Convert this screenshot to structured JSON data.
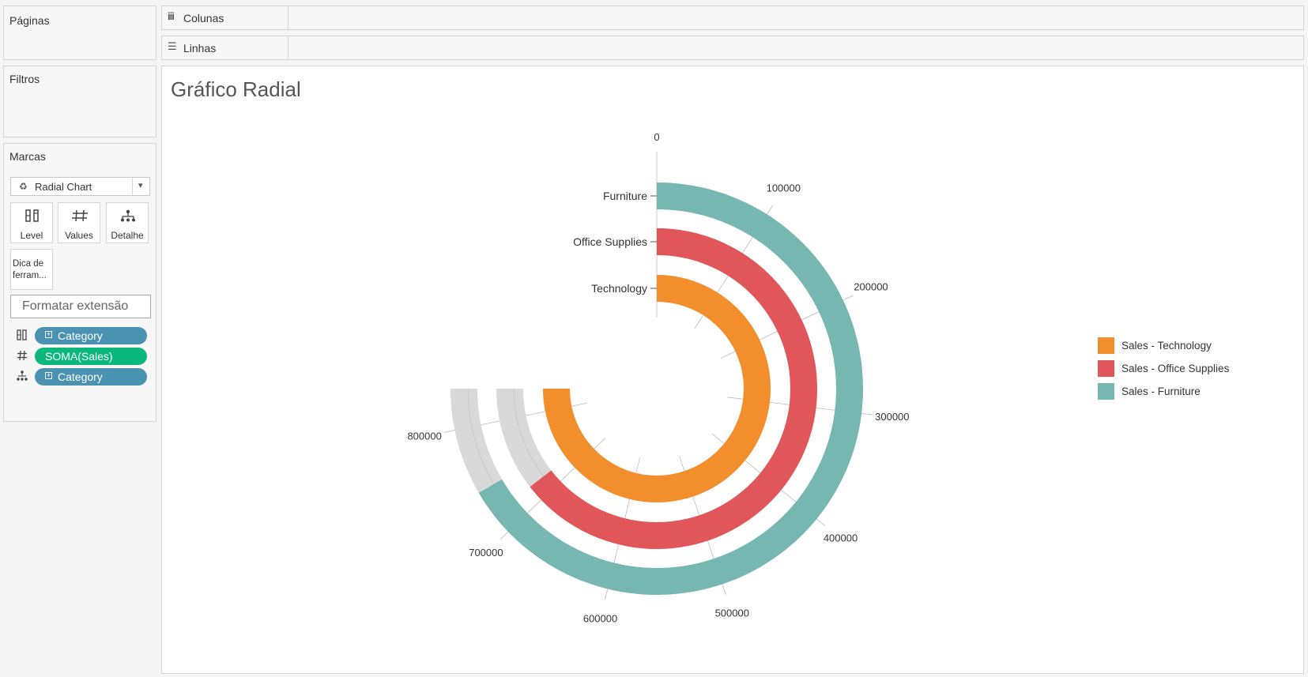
{
  "left_panel": {
    "paginas_title": "Páginas",
    "filtros_title": "Filtros",
    "marcas_title": "Marcas",
    "mark_type": "Radial Chart",
    "buttons": {
      "level": "Level",
      "values": "Values",
      "detalhe": "Detalhe",
      "tooltip": "Dica de ferram..."
    },
    "format_extension": "Formatar extensão",
    "pills": [
      {
        "label": "Category",
        "icon": "level-icon",
        "color": "#4a92b1"
      },
      {
        "label": "SOMA(Sales)",
        "icon": "hash-icon",
        "color": "#0bb77d"
      },
      {
        "label": "Category",
        "icon": "hierarchy-icon",
        "color": "#4a92b1"
      }
    ]
  },
  "shelves": {
    "colunas": "Colunas",
    "linhas": "Linhas"
  },
  "chart_data": {
    "type": "radial bar",
    "title": "Gráfico Radial",
    "axis_ticks": [
      0,
      100000,
      200000,
      300000,
      400000,
      500000,
      600000,
      700000,
      800000
    ],
    "axis_tick_labels": [
      "0",
      "100000",
      "200000",
      "300000",
      "400000",
      "500000",
      "600000",
      "700000",
      "800000"
    ],
    "axis_max": 836000,
    "categories": [
      "Furniture",
      "Office Supplies",
      "Technology"
    ],
    "series": [
      {
        "name": "Sales - Technology",
        "category": "Technology",
        "value": 836000,
        "color": "#f28e2b"
      },
      {
        "name": "Sales - Office Supplies",
        "category": "Office Supplies",
        "value": 719000,
        "color": "#e15759"
      },
      {
        "name": "Sales - Furniture",
        "category": "Furniture",
        "value": 742000,
        "color": "#76b7b2"
      }
    ],
    "background_track_color": "#d9d9d9",
    "legend_position": "right"
  }
}
